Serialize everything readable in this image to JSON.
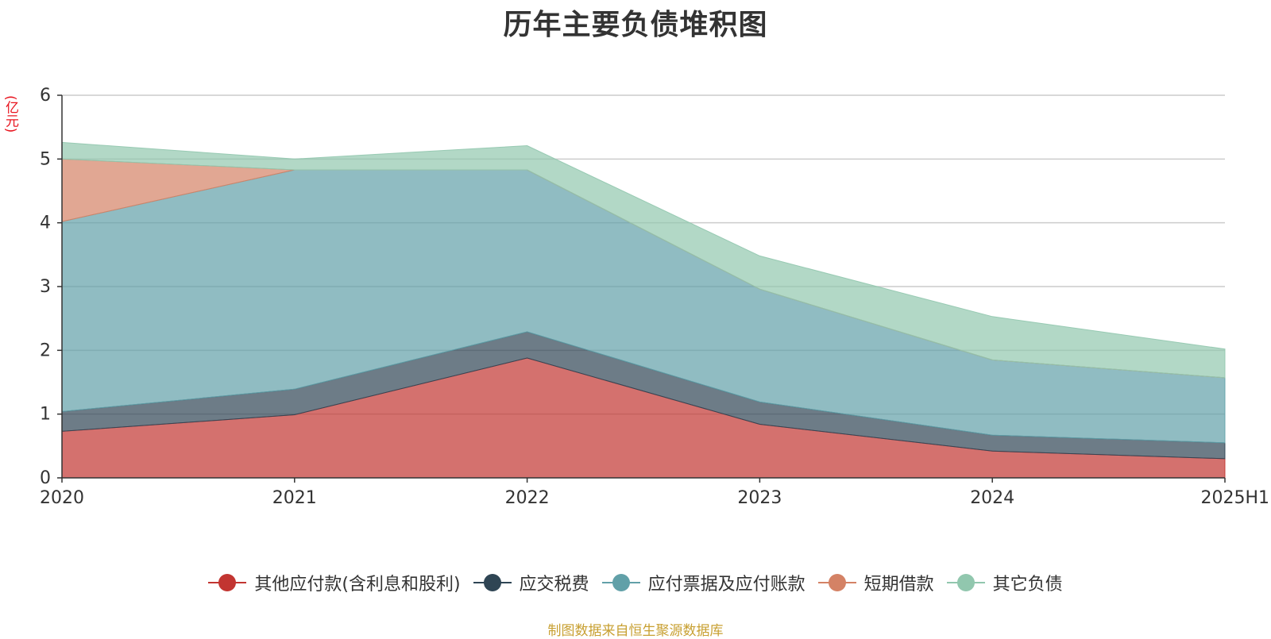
{
  "chart_data": {
    "type": "area",
    "stacked": true,
    "title": "历年主要负债堆积图",
    "unit": "(亿元)",
    "categories": [
      "2020",
      "2021",
      "2022",
      "2023",
      "2024",
      "2025H1"
    ],
    "ylim": [
      0,
      6
    ],
    "yticks": [
      "0",
      "1",
      "2",
      "3",
      "4",
      "5",
      "6"
    ],
    "grid": true,
    "legend_position": "bottom",
    "series": [
      {
        "name": "其他应付款(含利息和股利)",
        "color": "#c23531",
        "values": [
          0.73,
          0.99,
          1.88,
          0.84,
          0.42,
          0.3
        ]
      },
      {
        "name": "应交税费",
        "color": "#2f4554",
        "values": [
          0.31,
          0.4,
          0.41,
          0.35,
          0.25,
          0.25
        ]
      },
      {
        "name": "应付票据及应付账款",
        "color": "#61a0a8",
        "values": [
          2.98,
          3.44,
          2.54,
          1.77,
          1.18,
          1.02
        ]
      },
      {
        "name": "短期借款",
        "color": "#d48265",
        "values": [
          0.98,
          0.0,
          0.0,
          0.0,
          0.0,
          0.0
        ]
      },
      {
        "name": "其它负债",
        "color": "#91c7ae",
        "values": [
          0.26,
          0.17,
          0.38,
          0.52,
          0.68,
          0.45
        ]
      }
    ]
  },
  "source_note": "制图数据来自恒生聚源数据库"
}
